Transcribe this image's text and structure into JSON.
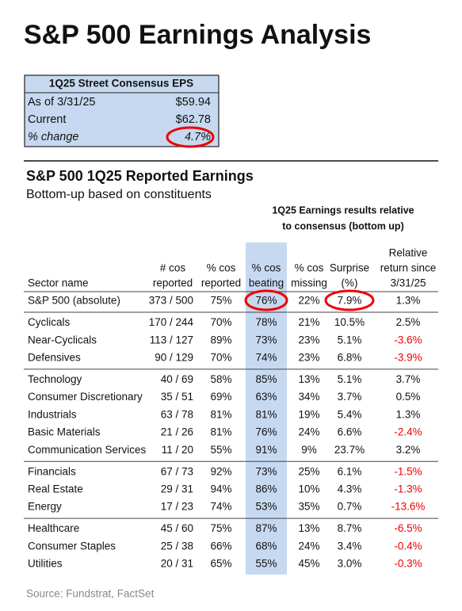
{
  "header": {
    "title": "S&P 500 Earnings Analysis"
  },
  "consensus": {
    "title": "1Q25 Street Consensus EPS",
    "rows": [
      [
        "As of 3/31/25",
        "$59.94"
      ],
      [
        "Current",
        "$62.78"
      ],
      [
        "% change",
        "4.7%"
      ]
    ]
  },
  "section": {
    "title": "S&P 500 1Q25 Reported Earnings",
    "subtitle": "Bottom-up based on constituents"
  },
  "table": {
    "group_header": [
      "1Q25 Earnings results relative",
      "to consensus (bottom up)"
    ],
    "columns": [
      [
        "Sector name"
      ],
      [
        "# cos",
        "reported"
      ],
      [
        "% cos",
        "reported"
      ],
      [
        "% cos",
        "beating"
      ],
      [
        "% cos",
        "missing"
      ],
      [
        "Surprise",
        "(%)"
      ],
      [
        "Relative",
        "return since",
        "3/31/25"
      ]
    ],
    "groups": [
      [
        [
          "S&P 500 (absolute)",
          "373 / 500",
          "75%",
          "76%",
          "22%",
          "7.9%",
          "1.3%"
        ]
      ],
      [
        [
          "Cyclicals",
          "170 / 244",
          "70%",
          "78%",
          "21%",
          "10.5%",
          "2.5%"
        ],
        [
          "Near-Cyclicals",
          "113 / 127",
          "89%",
          "73%",
          "23%",
          "5.1%",
          "-3.6%"
        ],
        [
          "Defensives",
          "90 / 129",
          "70%",
          "74%",
          "23%",
          "6.8%",
          "-3.9%"
        ]
      ],
      [
        [
          "Technology",
          "40 / 69",
          "58%",
          "85%",
          "13%",
          "5.1%",
          "3.7%"
        ],
        [
          "Consumer Discretionary",
          "35 / 51",
          "69%",
          "63%",
          "34%",
          "3.7%",
          "0.5%"
        ],
        [
          "Industrials",
          "63 / 78",
          "81%",
          "81%",
          "19%",
          "5.4%",
          "1.3%"
        ],
        [
          "Basic Materials",
          "21 / 26",
          "81%",
          "76%",
          "24%",
          "6.6%",
          "-2.4%"
        ],
        [
          "Communication Services",
          "11 / 20",
          "55%",
          "91%",
          "9%",
          "23.7%",
          "3.2%"
        ]
      ],
      [
        [
          "Financials",
          "67 / 73",
          "92%",
          "73%",
          "25%",
          "6.1%",
          "-1.5%"
        ],
        [
          "Real Estate",
          "29 / 31",
          "94%",
          "86%",
          "10%",
          "4.3%",
          "-1.3%"
        ],
        [
          "Energy",
          "17 / 23",
          "74%",
          "53%",
          "35%",
          "0.7%",
          "-13.6%"
        ]
      ],
      [
        [
          "Healthcare",
          "45 / 60",
          "75%",
          "87%",
          "13%",
          "8.7%",
          "-6.5%"
        ],
        [
          "Consumer Staples",
          "25 / 38",
          "66%",
          "68%",
          "24%",
          "3.4%",
          "-0.4%"
        ],
        [
          "Utilities",
          "20 / 31",
          "65%",
          "55%",
          "45%",
          "3.0%",
          "-0.3%"
        ]
      ]
    ]
  },
  "source": "Source: Fundstrat, FactSet"
}
